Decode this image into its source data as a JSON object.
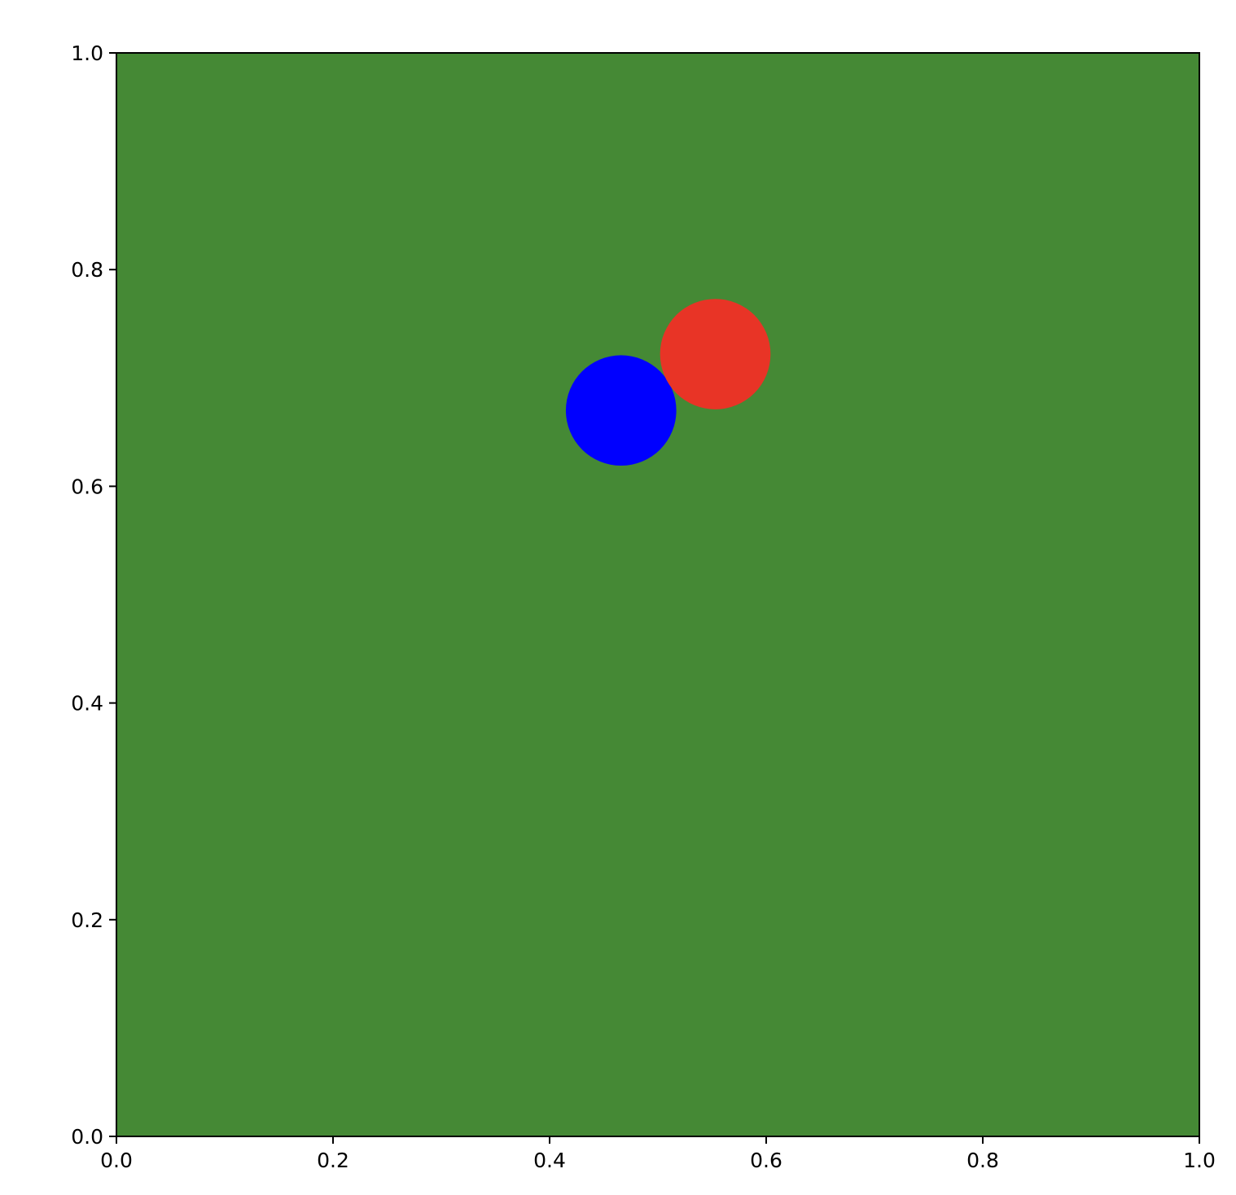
{
  "chart_data": {
    "type": "scatter",
    "title": "",
    "xlabel": "",
    "ylabel": "",
    "xlim": [
      0.0,
      1.0
    ],
    "ylim": [
      0.0,
      1.0
    ],
    "grid": false,
    "legend": "none",
    "background_color": "#458935",
    "x_ticks": [
      "0.0",
      "0.2",
      "0.4",
      "0.6",
      "0.8",
      "1.0"
    ],
    "y_ticks": [
      "0.0",
      "0.2",
      "0.4",
      "0.6",
      "0.8",
      "1.0"
    ],
    "points": [
      {
        "x": 0.466,
        "y": 0.67,
        "r": 0.051,
        "color": "#0000ff"
      },
      {
        "x": 0.553,
        "y": 0.722,
        "r": 0.051,
        "color": "#e83426"
      }
    ]
  }
}
